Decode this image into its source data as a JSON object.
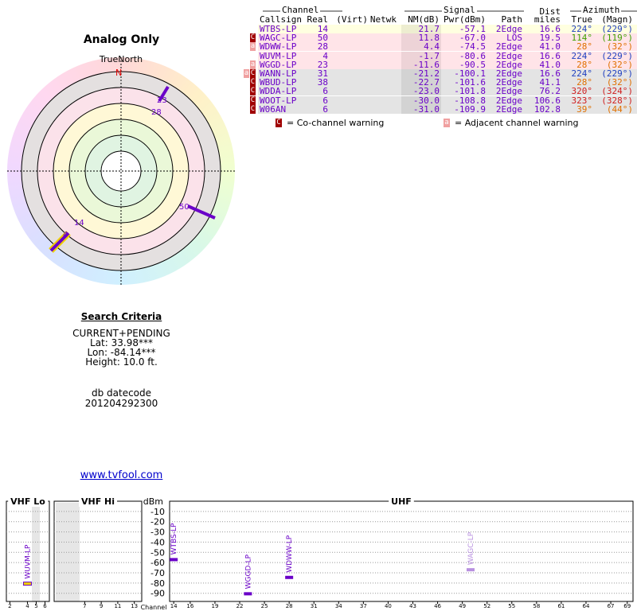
{
  "report": {
    "title": "Analog Only",
    "radar": {
      "north": "N",
      "north_label": "TrueNorth",
      "labels": [
        "23",
        "28",
        "50",
        "14",
        "4"
      ]
    },
    "table": {
      "groups": [
        "Channel",
        "Signal",
        "Azimuth"
      ],
      "headers": [
        "Callsign",
        "Real",
        "(Virt)",
        "Netwk",
        "NM(dB)",
        "Pwr(dBm)",
        "Path",
        "Dist",
        "miles",
        "True",
        "(Magn)"
      ],
      "rows": [
        {
          "warnings": [],
          "bg": "#ffffe0",
          "az_color": "#2040c0",
          "cells": [
            "WTBS-LP",
            "14",
            "21.7",
            "-57.1",
            "2Edge",
            "16.6",
            "224°",
            "(229°)"
          ]
        },
        {
          "warnings": [
            "C"
          ],
          "bg": "#ffe4e8",
          "az_color": "#40a000",
          "cells": [
            "WAGC-LP",
            "50",
            "11.8",
            "-67.0",
            "LOS",
            "19.5",
            "114°",
            "(119°)"
          ]
        },
        {
          "warnings": [
            "a"
          ],
          "bg": "#ffe4e8",
          "az_color": "#e07000",
          "cells": [
            "WDWW-LP",
            "28",
            "4.4",
            "-74.5",
            "2Edge",
            "41.0",
            "28°",
            "(32°)"
          ]
        },
        {
          "warnings": [],
          "bg": "#ffe4e8",
          "az_color": "#2040c0",
          "cells": [
            "WUVM-LP",
            "4",
            "-1.7",
            "-80.6",
            "2Edge",
            "16.6",
            "224°",
            "(229°)"
          ]
        },
        {
          "warnings": [
            "a"
          ],
          "bg": "#ffe4e8",
          "az_color": "#e07000",
          "cells": [
            "WGGD-LP",
            "23",
            "-11.6",
            "-90.5",
            "2Edge",
            "41.0",
            "28°",
            "(32°)"
          ]
        },
        {
          "warnings": [
            "a",
            "C"
          ],
          "bg": "#e4e4e4",
          "az_color": "#2040c0",
          "cells": [
            "WANN-LP",
            "31",
            "-21.2",
            "-100.1",
            "2Edge",
            "16.6",
            "224°",
            "(229°)"
          ]
        },
        {
          "warnings": [
            "C"
          ],
          "bg": "#e4e4e4",
          "az_color": "#e07000",
          "cells": [
            "WBUD-LP",
            "38",
            "-22.7",
            "-101.6",
            "2Edge",
            "41.1",
            "28°",
            "(32°)"
          ]
        },
        {
          "warnings": [
            "C"
          ],
          "bg": "#e4e4e4",
          "az_color": "#d02020",
          "cells": [
            "WDDA-LP",
            "6",
            "-23.0",
            "-101.8",
            "2Edge",
            "76.2",
            "320°",
            "(324°)"
          ]
        },
        {
          "warnings": [
            "C"
          ],
          "bg": "#e4e4e4",
          "az_color": "#d02020",
          "cells": [
            "WOOT-LP",
            "6",
            "-30.0",
            "-108.8",
            "2Edge",
            "106.6",
            "323°",
            "(328°)"
          ]
        },
        {
          "warnings": [
            "C"
          ],
          "bg": "#e4e4e4",
          "az_color": "#e07000",
          "cells": [
            "W06AN",
            "6",
            "-31.0",
            "-109.9",
            "2Edge",
            "102.8",
            "39°",
            "(44°)"
          ]
        }
      ],
      "legend": [
        {
          "mark": "C",
          "text": "= Co-channel warning"
        },
        {
          "mark": "a",
          "text": "= Adjacent channel warning"
        }
      ]
    },
    "criteria": {
      "title": "Search Criteria",
      "lines": [
        "CURRENT+PENDING",
        "Lat: 33.98***",
        "Lon: -84.14***",
        "Height: 10.0 ft."
      ],
      "db_label": "db datecode",
      "db_code": "201204292300"
    },
    "link": "www.tvfool.com"
  },
  "chart_data": {
    "type": "spectrum",
    "y_label": "dBm",
    "x_label": "Channel",
    "ylim": [
      -98,
      0
    ],
    "yticks": [
      -10,
      -20,
      -30,
      -40,
      -50,
      -60,
      -70,
      -80,
      -90
    ],
    "bands": [
      {
        "label": "VHF Lo",
        "xlim": [
          1.6,
          6.5
        ],
        "xticks": [
          2,
          4,
          5,
          6
        ]
      },
      {
        "label": "VHF Hi",
        "xlim": [
          3.3,
          13.9
        ],
        "xticks": [
          7,
          9,
          11,
          13
        ]
      },
      {
        "label": "UHF",
        "xlim": [
          13.5,
          69.7
        ],
        "xticks": [
          14,
          16,
          19,
          22,
          25,
          28,
          31,
          34,
          37,
          40,
          43,
          46,
          49,
          52,
          55,
          58,
          61,
          64,
          67,
          69
        ]
      }
    ],
    "x": [
      4,
      14,
      23,
      28,
      50
    ],
    "values": [
      -80.6,
      -57.1,
      -90.5,
      -74.5,
      -67.0
    ],
    "labels": [
      "WUVM-LP",
      "WTBS-LP",
      "WGGD-LP",
      "WDWW-LP",
      "WAGC-LP"
    ],
    "colors": [
      "#f0d000",
      "#6a00c8",
      "#6a00c8",
      "#6a00c8",
      "#b890e0"
    ]
  }
}
